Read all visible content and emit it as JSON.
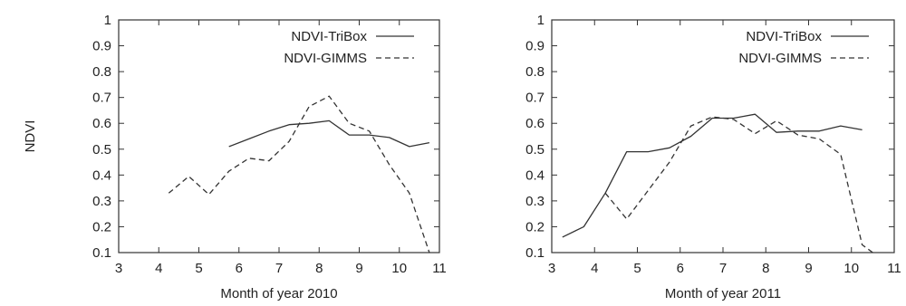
{
  "chart_data": [
    {
      "type": "line",
      "title": "",
      "xlabel": "Month of year 2010",
      "ylabel": "NDVI",
      "xlim": [
        3,
        11
      ],
      "ylim": [
        0.1,
        1
      ],
      "xticks": [
        "3",
        "4",
        "5",
        "6",
        "7",
        "8",
        "9",
        "10",
        "11"
      ],
      "yticks": [
        "0.1",
        "0.2",
        "0.3",
        "0.4",
        "0.5",
        "0.6",
        "0.7",
        "0.8",
        "0.9",
        "1"
      ],
      "grid": false,
      "legend_position": "top-right",
      "series": [
        {
          "name": "NDVI-TriBox",
          "style": "solid",
          "x": [
            5.75,
            6.25,
            6.75,
            7.25,
            7.75,
            8.25,
            8.75,
            9.25,
            9.75,
            10.25,
            10.75
          ],
          "y": [
            0.51,
            0.54,
            0.57,
            0.595,
            0.6,
            0.61,
            0.555,
            0.555,
            0.545,
            0.51,
            0.525
          ]
        },
        {
          "name": "NDVI-GIMMS",
          "style": "dashed",
          "x": [
            4.25,
            4.75,
            5.25,
            5.75,
            6.25,
            6.75,
            7.25,
            7.75,
            8.25,
            8.75,
            9.25,
            9.75,
            10.25,
            10.75
          ],
          "y": [
            0.33,
            0.395,
            0.325,
            0.415,
            0.465,
            0.455,
            0.53,
            0.665,
            0.705,
            0.6,
            0.57,
            0.44,
            0.33,
            0.1
          ]
        }
      ]
    },
    {
      "type": "line",
      "title": "",
      "xlabel": "Month of year 2011",
      "ylabel": "",
      "xlim": [
        3,
        11
      ],
      "ylim": [
        0.1,
        1
      ],
      "xticks": [
        "3",
        "4",
        "5",
        "6",
        "7",
        "8",
        "9",
        "10",
        "11"
      ],
      "yticks": [
        "0.1",
        "0.2",
        "0.3",
        "0.4",
        "0.5",
        "0.6",
        "0.7",
        "0.8",
        "0.9",
        "1"
      ],
      "grid": false,
      "legend_position": "top-right",
      "series": [
        {
          "name": "NDVI-TriBox",
          "style": "solid",
          "x": [
            3.25,
            3.75,
            4.25,
            4.75,
            5.25,
            5.75,
            6.25,
            6.75,
            7.25,
            7.75,
            8.25,
            8.75,
            9.25,
            9.75,
            10.25
          ],
          "y": [
            0.16,
            0.2,
            0.33,
            0.49,
            0.49,
            0.505,
            0.55,
            0.62,
            0.62,
            0.635,
            0.565,
            0.57,
            0.57,
            0.59,
            0.575
          ]
        },
        {
          "name": "NDVI-GIMMS",
          "style": "dashed",
          "x": [
            4.25,
            4.75,
            5.25,
            5.75,
            6.25,
            6.75,
            7.25,
            7.75,
            8.25,
            8.75,
            9.25,
            9.75,
            10.25,
            10.5
          ],
          "y": [
            0.33,
            0.23,
            0.34,
            0.45,
            0.59,
            0.625,
            0.615,
            0.56,
            0.61,
            0.555,
            0.54,
            0.48,
            0.13,
            0.1
          ]
        }
      ]
    }
  ]
}
